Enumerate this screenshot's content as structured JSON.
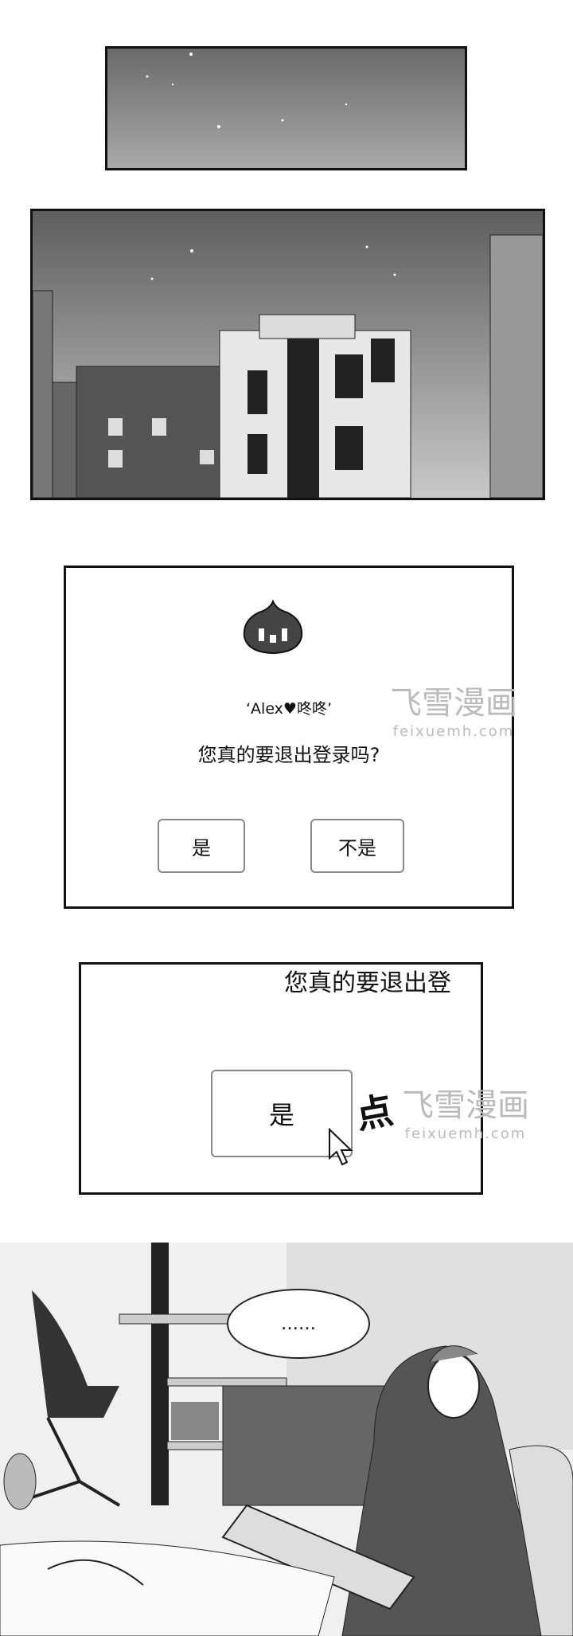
{
  "dialog": {
    "username": "‘Alex♥咚咚’",
    "question": "您真的要退出登录吗?",
    "yes_label": "是",
    "no_label": "不是"
  },
  "zoom": {
    "partial_question": "您真的要退出登",
    "yes_label": "是",
    "sfx": "点"
  },
  "watermark": {
    "title": "飞雪漫画",
    "url": "feixuemh.com"
  },
  "room": {
    "speech": "……"
  },
  "colors": {
    "ink": "#111111",
    "button_border": "#888888",
    "watermark": "#bbbbbb"
  }
}
